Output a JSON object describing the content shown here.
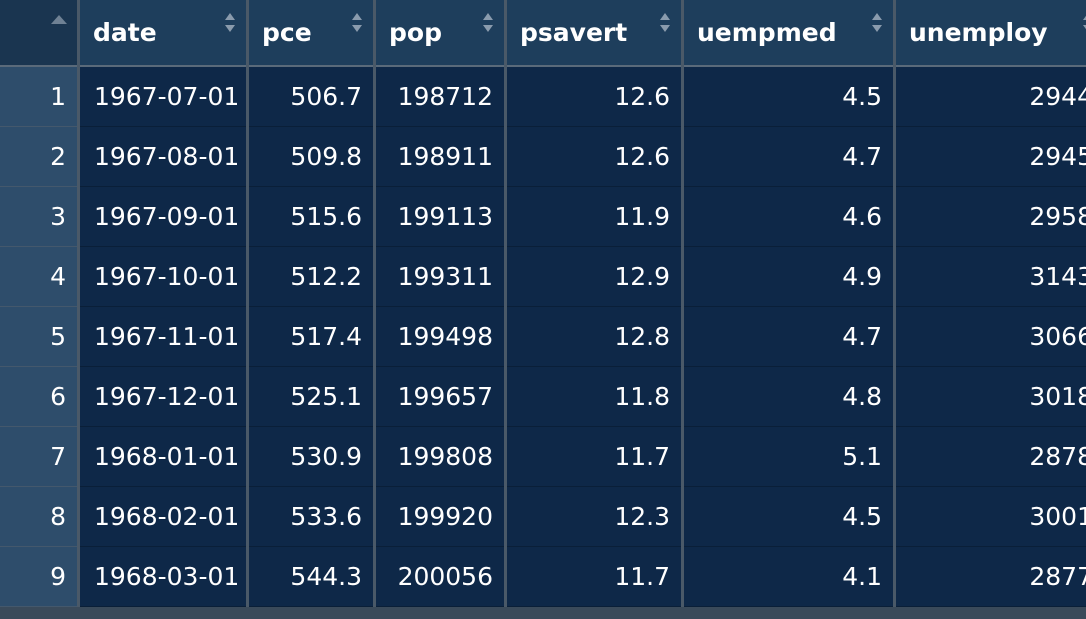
{
  "table": {
    "columns": [
      "date",
      "pce",
      "pop",
      "psavert",
      "uempmed",
      "unemploy"
    ],
    "rows": [
      {
        "idx": "1",
        "date": "1967-07-01",
        "pce": "506.7",
        "pop": "198712",
        "psavert": "12.6",
        "uempmed": "4.5",
        "unemploy": "2944"
      },
      {
        "idx": "2",
        "date": "1967-08-01",
        "pce": "509.8",
        "pop": "198911",
        "psavert": "12.6",
        "uempmed": "4.7",
        "unemploy": "2945"
      },
      {
        "idx": "3",
        "date": "1967-09-01",
        "pce": "515.6",
        "pop": "199113",
        "psavert": "11.9",
        "uempmed": "4.6",
        "unemploy": "2958"
      },
      {
        "idx": "4",
        "date": "1967-10-01",
        "pce": "512.2",
        "pop": "199311",
        "psavert": "12.9",
        "uempmed": "4.9",
        "unemploy": "3143"
      },
      {
        "idx": "5",
        "date": "1967-11-01",
        "pce": "517.4",
        "pop": "199498",
        "psavert": "12.8",
        "uempmed": "4.7",
        "unemploy": "3066"
      },
      {
        "idx": "6",
        "date": "1967-12-01",
        "pce": "525.1",
        "pop": "199657",
        "psavert": "11.8",
        "uempmed": "4.8",
        "unemploy": "3018"
      },
      {
        "idx": "7",
        "date": "1968-01-01",
        "pce": "530.9",
        "pop": "199808",
        "psavert": "11.7",
        "uempmed": "5.1",
        "unemploy": "2878"
      },
      {
        "idx": "8",
        "date": "1968-02-01",
        "pce": "533.6",
        "pop": "199920",
        "psavert": "12.3",
        "uempmed": "4.5",
        "unemploy": "3001"
      },
      {
        "idx": "9",
        "date": "1968-03-01",
        "pce": "544.3",
        "pop": "200056",
        "psavert": "11.7",
        "uempmed": "4.1",
        "unemploy": "2877"
      }
    ]
  },
  "colors": {
    "header_bg": "#1e3e5c",
    "index_bg": "#2e4d6b",
    "cell_bg": "#0e2848",
    "text": "#ffffff",
    "grid_lines": "#4a5968"
  },
  "icons": {
    "corner": "sort-up-icon",
    "column_sort": "sort-updown-icon"
  }
}
